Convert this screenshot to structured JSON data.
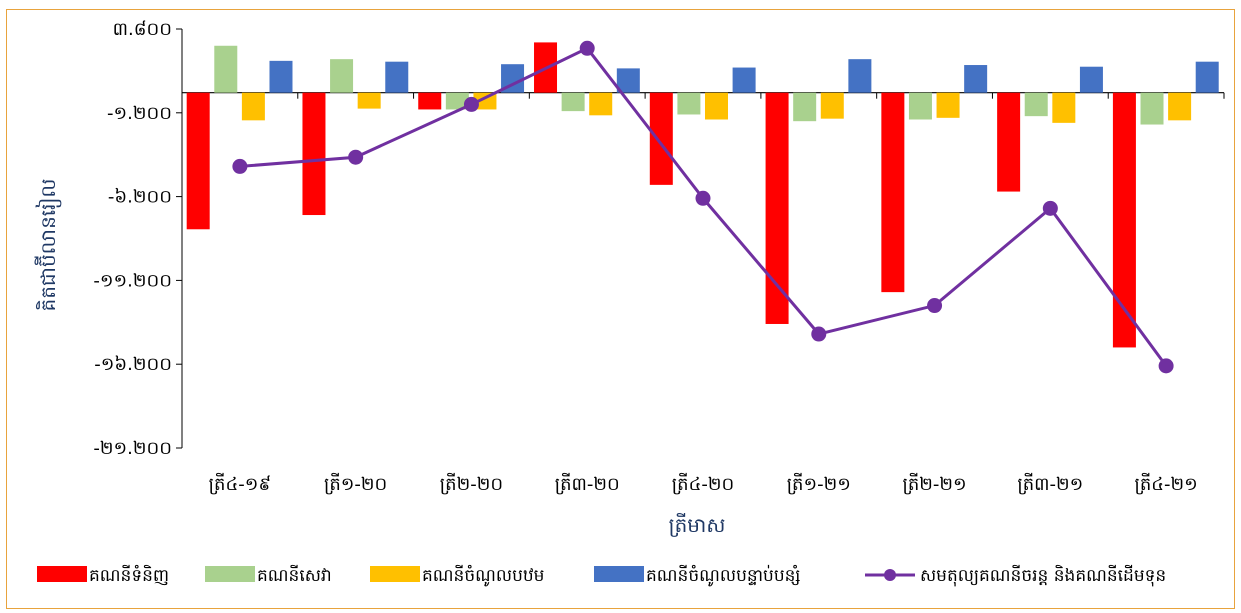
{
  "chart_data": {
    "type": "bar",
    "ylabel": "គិតជាប៊ីលានរៀល",
    "xlabel": "ត្រីមាស",
    "ylim": [
      -21200,
      3800
    ],
    "yticks": [
      3800,
      -1200,
      -6200,
      -11200,
      -16200,
      -21200
    ],
    "ytick_labels": [
      "៣.៨០០",
      "-១.២០០",
      "-៦.២០០",
      "-១១.២០០",
      "-១៦.២០០",
      "-២១.២០០"
    ],
    "categories": [
      "ត្រី៤-១៩",
      "ត្រី១-២០",
      "ត្រី២-២០",
      "ត្រី៣-២០",
      "ត្រី៤-២០",
      "ត្រី១-២១",
      "ត្រី២-២១",
      "ត្រី៣-២១",
      "ត្រី៤-២១"
    ],
    "series": [
      {
        "name": "គណនីទំនិញ",
        "kind": "bar",
        "color": "#FF0000",
        "values": [
          -8150,
          -7300,
          -1000,
          3000,
          -5500,
          -13800,
          -11900,
          -5900,
          -15200
        ]
      },
      {
        "name": "គណនីសេវា",
        "kind": "bar",
        "color": "#A9D18E",
        "values": [
          2800,
          2000,
          -1000,
          -1100,
          -1300,
          -1700,
          -1600,
          -1400,
          -1900
        ]
      },
      {
        "name": "គណនីចំណូលបឋម",
        "kind": "bar",
        "color": "#FFC000",
        "values": [
          -1650,
          -950,
          -1000,
          -1350,
          -1600,
          -1550,
          -1500,
          -1800,
          -1650
        ]
      },
      {
        "name": "គណនីចំណូលបន្ទាប់បន្សំ",
        "kind": "bar",
        "color": "#4472C4",
        "values": [
          1900,
          1850,
          1700,
          1450,
          1500,
          2000,
          1650,
          1550,
          1850
        ]
      },
      {
        "name": "សមតុល្យគណនីចរន្ត និងគណនីដើមទុន",
        "kind": "line",
        "color": "#7030A0",
        "values": [
          -4400,
          -3850,
          -700,
          2650,
          -6300,
          -14400,
          -12700,
          -6900,
          -16300
        ]
      }
    ],
    "legend": "bottom",
    "grid": false
  }
}
